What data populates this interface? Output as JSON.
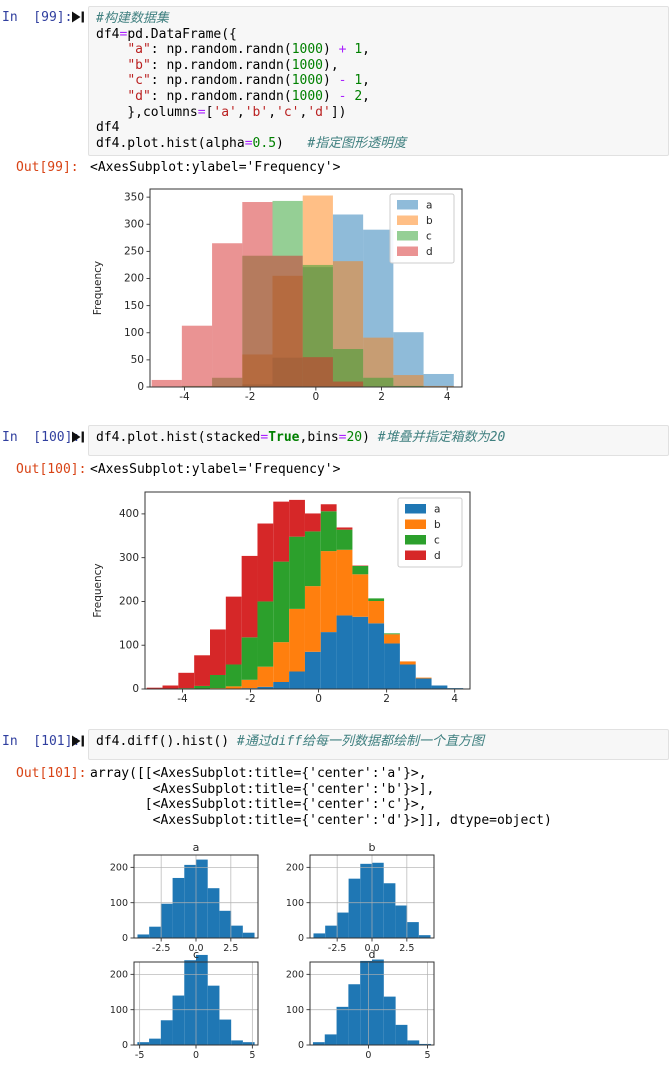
{
  "colors": {
    "in_prompt": "#303f9f",
    "out_prompt": "#d84315",
    "comment": "#408080",
    "string": "#ba2121",
    "number": "#008000",
    "operator": "#aa22ff",
    "keyword": "#008000",
    "mpl_blue": "#1f77b4",
    "mpl_orange": "#ff7f0e",
    "mpl_green": "#2ca02c",
    "mpl_red": "#d62728",
    "input_bg": "#f7f7f7"
  },
  "cells": [
    {
      "id": "99",
      "prompt": "In  [99]:",
      "run_icon": "run-cell-icon",
      "lines": [
        [
          [
            "com",
            "#构建数据集"
          ]
        ],
        [
          [
            "pl",
            "df4"
          ],
          [
            "op",
            "="
          ],
          [
            "pl",
            "pd.DataFrame({"
          ]
        ],
        [
          [
            "pl",
            "    "
          ],
          [
            "str",
            "\"a\""
          ],
          [
            "pl",
            ": np.random.randn("
          ],
          [
            "num",
            "1000"
          ],
          [
            "pl",
            ") "
          ],
          [
            "op",
            "+"
          ],
          [
            "pl",
            " "
          ],
          [
            "num",
            "1"
          ],
          [
            "pl",
            ","
          ]
        ],
        [
          [
            "pl",
            "    "
          ],
          [
            "str",
            "\"b\""
          ],
          [
            "pl",
            ": np.random.randn("
          ],
          [
            "num",
            "1000"
          ],
          [
            "pl",
            "),"
          ]
        ],
        [
          [
            "pl",
            "    "
          ],
          [
            "str",
            "\"c\""
          ],
          [
            "pl",
            ": np.random.randn("
          ],
          [
            "num",
            "1000"
          ],
          [
            "pl",
            ") "
          ],
          [
            "op",
            "-"
          ],
          [
            "pl",
            " "
          ],
          [
            "num",
            "1"
          ],
          [
            "pl",
            ","
          ]
        ],
        [
          [
            "pl",
            "    "
          ],
          [
            "str",
            "\"d\""
          ],
          [
            "pl",
            ": np.random.randn("
          ],
          [
            "num",
            "1000"
          ],
          [
            "pl",
            ") "
          ],
          [
            "op",
            "-"
          ],
          [
            "pl",
            " "
          ],
          [
            "num",
            "2"
          ],
          [
            "pl",
            ","
          ]
        ],
        [
          [
            "pl",
            "    },columns"
          ],
          [
            "op",
            "="
          ],
          [
            "pl",
            "["
          ],
          [
            "str",
            "'a'"
          ],
          [
            "pl",
            ","
          ],
          [
            "str",
            "'b'"
          ],
          [
            "pl",
            ","
          ],
          [
            "str",
            "'c'"
          ],
          [
            "pl",
            ","
          ],
          [
            "str",
            "'d'"
          ],
          [
            "pl",
            "])"
          ]
        ],
        [
          [
            "pl",
            "df4"
          ]
        ],
        [
          [
            "pl",
            "df4.plot.hist(alpha"
          ],
          [
            "op",
            "="
          ],
          [
            "num",
            "0.5"
          ],
          [
            "pl",
            ")   "
          ],
          [
            "com",
            "#指定图形透明度"
          ]
        ]
      ]
    },
    {
      "id": "100",
      "prompt": "In  [100]:",
      "run_icon": "run-cell-icon",
      "lines": [
        [
          [
            "pl",
            "df4.plot.hist(stacked"
          ],
          [
            "op",
            "="
          ],
          [
            "kw",
            "True"
          ],
          [
            "pl",
            ",bins"
          ],
          [
            "op",
            "="
          ],
          [
            "num",
            "20"
          ],
          [
            "pl",
            ") "
          ],
          [
            "com",
            "#堆叠并指定箱数为20"
          ]
        ]
      ]
    },
    {
      "id": "101",
      "prompt": "In  [101]:",
      "run_icon": "run-cell-icon",
      "lines": [
        [
          [
            "pl",
            "df4.diff().hist() "
          ],
          [
            "com",
            "#通过diff给每一列数据都绘制一个直方图"
          ]
        ]
      ]
    }
  ],
  "outputs": [
    {
      "prompt": "Out[99]:",
      "text": "<AxesSubplot:ylabel='Frequency'>"
    },
    {
      "prompt": "Out[100]:",
      "text": "<AxesSubplot:ylabel='Frequency'>"
    },
    {
      "prompt": "Out[101]:",
      "text": "array([[<AxesSubplot:title={'center':'a'}>,\n        <AxesSubplot:title={'center':'b'}>],\n       [<AxesSubplot:title={'center':'c'}>,\n        <AxesSubplot:title={'center':'d'}>]], dtype=object)"
    }
  ],
  "chart_data": [
    {
      "id": "fig1",
      "type": "bar",
      "subtype": "overlapping-histogram",
      "title": "",
      "xlabel": "",
      "ylabel": "Frequency",
      "alpha": 0.5,
      "bin_start": -5.0,
      "bin_width": 0.92,
      "xlim": [
        -5.05,
        4.45
      ],
      "ylim": [
        0,
        365
      ],
      "x_tick_vals": [
        -4,
        -2,
        0,
        2,
        4
      ],
      "x_tick_labels": [
        "-4",
        "-2",
        "0",
        "2",
        "4"
      ],
      "y_tick_vals": [
        0,
        50,
        100,
        150,
        200,
        250,
        300,
        350
      ],
      "grid": false,
      "legend_position": "upper-right",
      "series": [
        {
          "name": "a",
          "color": "#1f77b4",
          "values": [
            0,
            0,
            0,
            5,
            54,
            221,
            318,
            290,
            101,
            24
          ]
        },
        {
          "name": "b",
          "color": "#ff7f0e",
          "values": [
            0,
            0,
            2,
            60,
            205,
            353,
            232,
            91,
            22,
            2
          ]
        },
        {
          "name": "c",
          "color": "#2ca02c",
          "values": [
            0,
            2,
            17,
            242,
            343,
            225,
            70,
            17,
            2,
            0
          ]
        },
        {
          "name": "d",
          "color": "#d62728",
          "values": [
            13,
            113,
            265,
            341,
            242,
            55,
            10,
            0,
            0,
            0
          ]
        }
      ]
    },
    {
      "id": "fig2",
      "type": "bar",
      "subtype": "stacked-histogram",
      "title": "",
      "xlabel": "",
      "ylabel": "Frequency",
      "bins": 20,
      "bin_start": -5.05,
      "bin_width": 0.465,
      "xlim": [
        -5.1,
        4.45
      ],
      "ylim": [
        0,
        450
      ],
      "x_tick_vals": [
        -4,
        -2,
        0,
        2,
        4
      ],
      "x_tick_labels": [
        "-4",
        "-2",
        "0",
        "2",
        "4"
      ],
      "y_tick_vals": [
        0,
        100,
        200,
        300,
        400
      ],
      "grid": false,
      "legend_position": "upper-right",
      "series": [
        {
          "name": "a",
          "color": "#1f77b4",
          "values": [
            0,
            0,
            0,
            0,
            0,
            0,
            2,
            5,
            16,
            40,
            85,
            130,
            168,
            165,
            150,
            104,
            56,
            24,
            8,
            2
          ]
        },
        {
          "name": "b",
          "color": "#ff7f0e",
          "values": [
            0,
            0,
            0,
            0,
            2,
            6,
            19,
            46,
            91,
            143,
            150,
            185,
            150,
            97,
            51,
            21,
            7,
            2,
            0,
            0
          ]
        },
        {
          "name": "c",
          "color": "#2ca02c",
          "values": [
            0,
            0,
            2,
            7,
            30,
            50,
            97,
            149,
            184,
            165,
            125,
            91,
            46,
            19,
            6,
            2,
            0,
            0,
            0,
            0
          ]
        },
        {
          "name": "d",
          "color": "#d62728",
          "values": [
            3,
            8,
            35,
            70,
            104,
            155,
            186,
            178,
            137,
            84,
            41,
            16,
            5,
            1,
            0,
            0,
            0,
            0,
            0,
            0
          ]
        }
      ]
    },
    {
      "id": "fig3",
      "type": "bar",
      "subtype": "histogram-grid-2x2",
      "bar_color": "#1f77b4",
      "grid": true,
      "y_tick_vals": [
        0,
        100,
        200
      ],
      "ylim": [
        0,
        235
      ],
      "subplots": [
        {
          "title": "a",
          "bin_start": -4.2,
          "bin_width": 0.84,
          "xlim": [
            -4.45,
            4.45
          ],
          "x_tick_vals": [
            -2.5,
            0.0,
            2.5
          ],
          "x_tick_labels": [
            "-2.5",
            "0.0",
            "2.5"
          ],
          "values": [
            10,
            32,
            97,
            170,
            207,
            222,
            141,
            77,
            35,
            15
          ]
        },
        {
          "title": "b",
          "bin_start": -4.2,
          "bin_width": 0.84,
          "xlim": [
            -4.45,
            4.45
          ],
          "x_tick_vals": [
            -2.5,
            0.0,
            2.5
          ],
          "x_tick_labels": [
            "-2.5",
            "0.0",
            "2.5"
          ],
          "values": [
            13,
            35,
            72,
            168,
            210,
            213,
            155,
            92,
            45,
            8
          ]
        },
        {
          "title": "c",
          "bin_start": -5.2,
          "bin_width": 1.04,
          "xlim": [
            -5.5,
            5.5
          ],
          "x_tick_vals": [
            -5,
            0,
            5
          ],
          "x_tick_labels": [
            "-5",
            "0",
            "5"
          ],
          "values": [
            8,
            18,
            70,
            140,
            240,
            255,
            168,
            72,
            13,
            8
          ]
        },
        {
          "title": "d",
          "bin_start": -4.7,
          "bin_width": 1.0,
          "xlim": [
            -4.95,
            5.55
          ],
          "x_tick_vals": [
            0,
            5
          ],
          "x_tick_labels": [
            "0",
            "5"
          ],
          "values": [
            8,
            30,
            108,
            172,
            238,
            242,
            137,
            57,
            13,
            3
          ]
        }
      ]
    }
  ]
}
